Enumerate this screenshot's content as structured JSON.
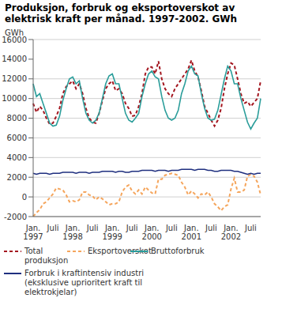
{
  "chart_data": {
    "type": "line",
    "title": "Produksjon, forbruk og eksportoverskot av elektrisk kraft per månad. 1997-2002. GWh",
    "y_label": "GWh",
    "categories": [
      "Jan. 1997",
      null,
      null,
      null,
      null,
      null,
      "Juli",
      null,
      null,
      null,
      null,
      null,
      "Jan. 1998",
      null,
      null,
      null,
      null,
      null,
      "Juli",
      null,
      null,
      null,
      null,
      null,
      "Jan. 1999",
      null,
      null,
      null,
      null,
      null,
      "Juli",
      null,
      null,
      null,
      null,
      null,
      "Jan. 2000",
      null,
      null,
      null,
      null,
      null,
      "Juli",
      null,
      null,
      null,
      null,
      null,
      "Jan. 2001",
      null,
      null,
      null,
      null,
      null,
      "Juli",
      null,
      null,
      null,
      null,
      null,
      "Jan. 2002",
      null,
      null,
      null,
      null,
      null,
      "Juli",
      null,
      null,
      null
    ],
    "series": [
      {
        "name": "Total produksjon",
        "color": "#a3161f",
        "line_style": "dashed",
        "values": [
          9500,
          8600,
          9200,
          8800,
          8000,
          7400,
          7500,
          8200,
          9000,
          10500,
          11200,
          11500,
          11800,
          11000,
          11500,
          10500,
          9000,
          8000,
          7600,
          7500,
          8500,
          9800,
          11000,
          11500,
          11800,
          10800,
          11000,
          10500,
          9500,
          9000,
          8200,
          8300,
          9200,
          10500,
          12500,
          13200,
          13200,
          12500,
          13800,
          12000,
          11000,
          10500,
          10200,
          11000,
          11500,
          12000,
          12500,
          13000,
          13900,
          12800,
          12200,
          10800,
          9200,
          8500,
          7800,
          7200,
          7800,
          9000,
          11000,
          12500,
          13600,
          13400,
          12000,
          10500,
          9500,
          9700,
          9200,
          9600,
          10000,
          11800
        ]
      },
      {
        "name": "Eksportoverskot",
        "color": "#f5a55c",
        "line_style": "dashed",
        "values": [
          -2000,
          -1600,
          -1300,
          -700,
          -500,
          -100,
          300,
          900,
          800,
          700,
          200,
          -500,
          -400,
          -500,
          -300,
          500,
          500,
          200,
          100,
          -300,
          0,
          -200,
          -500,
          -800,
          -700,
          -700,
          -500,
          500,
          1000,
          1200,
          600,
          300,
          700,
          300,
          1000,
          700,
          400,
          300,
          1800,
          1800,
          2200,
          2300,
          2400,
          2300,
          2200,
          1500,
          1000,
          200,
          600,
          300,
          -100,
          300,
          200,
          500,
          0,
          -700,
          -1000,
          -1400,
          -1000,
          -800,
          800,
          1900,
          500,
          500,
          700,
          2100,
          2300,
          2100,
          1500,
          200
        ]
      },
      {
        "name": "Bruttoforbruk",
        "color": "#2a9d9a",
        "line_style": "solid",
        "values": [
          11500,
          10200,
          10500,
          9500,
          8500,
          7500,
          7200,
          7300,
          8200,
          9800,
          11000,
          12000,
          12200,
          11500,
          11800,
          10000,
          8500,
          7800,
          7500,
          7800,
          8500,
          10000,
          11500,
          12300,
          12500,
          11500,
          11500,
          10000,
          8500,
          7800,
          7600,
          8000,
          8500,
          10200,
          11500,
          12500,
          12800,
          12200,
          12000,
          10200,
          8800,
          8000,
          7800,
          8000,
          8800,
          10500,
          11500,
          12800,
          13300,
          12500,
          12300,
          10500,
          9000,
          8000,
          7800,
          7900,
          8800,
          10400,
          12000,
          13300,
          12800,
          11500,
          11500,
          10000,
          8800,
          7600,
          6900,
          7500,
          8000,
          10000
        ]
      },
      {
        "name": "Forbruk i kraftintensiv industri (eksklusive uprioritert kraft til elektrokjelar)",
        "color": "#1f2f7f",
        "line_style": "solid",
        "values": [
          2400,
          2300,
          2400,
          2400,
          2400,
          2300,
          2400,
          2400,
          2400,
          2500,
          2500,
          2500,
          2500,
          2400,
          2500,
          2500,
          2500,
          2400,
          2500,
          2500,
          2500,
          2600,
          2600,
          2600,
          2600,
          2500,
          2600,
          2600,
          2500,
          2500,
          2600,
          2600,
          2600,
          2700,
          2700,
          2700,
          2700,
          2600,
          2700,
          2700,
          2700,
          2600,
          2700,
          2700,
          2700,
          2800,
          2800,
          2800,
          2800,
          2700,
          2800,
          2800,
          2800,
          2700,
          2700,
          2600,
          2600,
          2700,
          2700,
          2700,
          2700,
          2600,
          2600,
          2500,
          2400,
          2300,
          2400,
          2300,
          2400,
          2400
        ]
      }
    ],
    "ylim": [
      -2000,
      16000
    ],
    "yticks": [
      -2000,
      0,
      2000,
      4000,
      6000,
      8000,
      10000,
      12000,
      14000,
      16000
    ],
    "grid": true
  }
}
